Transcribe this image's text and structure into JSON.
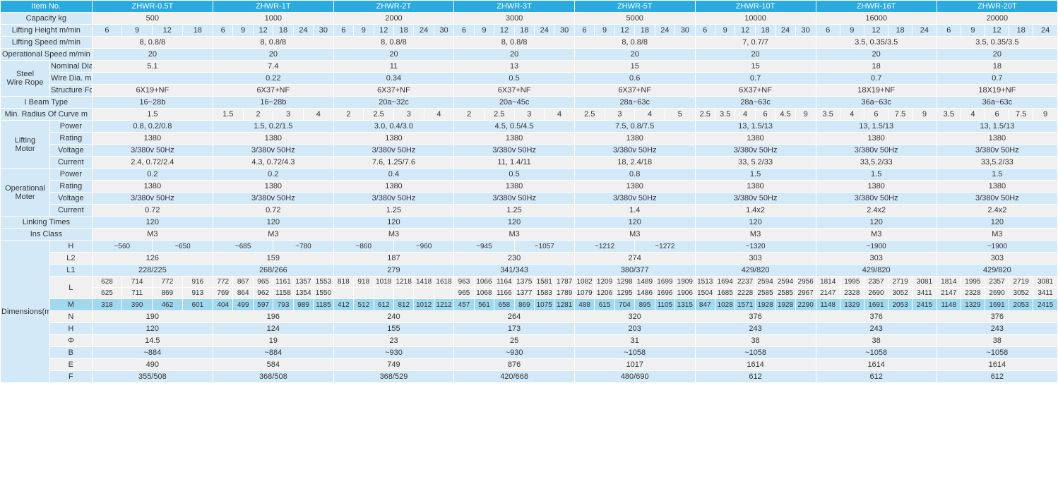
{
  "table": {
    "type": "table",
    "background_color": "#ffffff",
    "header_bg": "#29abe2",
    "header_text_color": "#ffffff",
    "alt_bg_light": "#d4e9f7",
    "alt_bg_mid": "#a0d8f0",
    "alt_bg_white": "#f0f0f0",
    "font_size_pt": 11,
    "font_family": "Arial",
    "col_widths": {
      "label_col1": 70,
      "label_col2": 60,
      "data_col": 171
    },
    "headers": {
      "item_no": "Item No.",
      "models": [
        "ZHWR-0.5T",
        "ZHWR-1T",
        "ZHWR-2T",
        "ZHWR-3T",
        "ZHWR-5T",
        "ZHWR-10T",
        "ZHWR-16T",
        "ZHWR-20T"
      ]
    },
    "rows": [
      {
        "label": "Capacity kg",
        "values": [
          "500",
          "1000",
          "2000",
          "3000",
          "5000",
          "10000",
          "16000",
          "20000"
        ],
        "style": "white"
      },
      {
        "label": "Lifting Height m/min",
        "subcols": true,
        "data": [
          [
            "6",
            "9",
            "12",
            "18"
          ],
          [
            "6",
            "9",
            "12",
            "18",
            "24",
            "30"
          ],
          [
            "6",
            "9",
            "12",
            "18",
            "24",
            "30"
          ],
          [
            "6",
            "9",
            "12",
            "18",
            "24",
            "30"
          ],
          [
            "6",
            "9",
            "12",
            "18",
            "24",
            "30"
          ],
          [
            "6",
            "9",
            "12",
            "18",
            "24",
            "30"
          ],
          [
            "6",
            "9",
            "12",
            "18",
            "24"
          ],
          [
            "6",
            "9",
            "12",
            "18",
            "24"
          ]
        ],
        "style": "light"
      },
      {
        "label": "Lifting Speed m/min",
        "values": [
          "8,  0.8/8",
          "8,  0.8/8",
          "8,  0.8/8",
          "8,  0.8/8",
          "8,  0.8/8",
          "7,  0.7/7",
          "3.5,  0.35/3.5",
          "3.5,  0.35/3.5"
        ],
        "style": "white"
      },
      {
        "label": "Operational Speed m/min",
        "values": [
          "20",
          "20",
          "20",
          "20",
          "20",
          "20",
          "20",
          "20"
        ],
        "style": "light"
      },
      {
        "group": "Steel Wire Rope",
        "sublabel": "Nominal Dia. mm",
        "values": [
          "5.1",
          "7.4",
          "11",
          "13",
          "15",
          "15",
          "18",
          "18"
        ],
        "style": "white"
      },
      {
        "group": "Steel Wire Rope",
        "sublabel": "Wire Dia. m",
        "values": [
          "",
          "0.22",
          "0.34",
          "0.5",
          "0.6",
          "0.7",
          "0.7",
          "0.7"
        ],
        "style": "light"
      },
      {
        "group": "Steel Wire Rope",
        "sublabel": "Structure Form",
        "values": [
          "6X19+NF",
          "6X37+NF",
          "6X37+NF",
          "6X37+NF",
          "6X37+NF",
          "6X37+NF",
          "18X19+NF",
          "18X19+NF"
        ],
        "style": "white"
      },
      {
        "label": "I Beam Type",
        "values": [
          "16~28b",
          "16~28b",
          "20a~32c",
          "20a~45c",
          "28a~63c",
          "28a~63c",
          "36a~63c",
          "36a~63c"
        ],
        "style": "light"
      },
      {
        "label": "Min. Radius Of Curve m",
        "subcols": true,
        "data": [
          [
            "1.5"
          ],
          [
            "1.5",
            "2",
            "3",
            "4"
          ],
          [
            "2",
            "2.5",
            "3",
            "4"
          ],
          [
            "2",
            "2.5",
            "3",
            "4"
          ],
          [
            "2.5",
            "3",
            "4",
            "5"
          ],
          [
            "2.5",
            "3.5",
            "4",
            "6",
            "4.5",
            "9"
          ],
          [
            "3.5",
            "4",
            "6",
            "7.5",
            "9"
          ],
          [
            "3.5",
            "4",
            "6",
            "7.5",
            "9"
          ]
        ],
        "style": "white"
      },
      {
        "group": "Lifting Motor",
        "sublabel": "Power",
        "values": [
          "0.8, 0.2/0.8",
          "1.5, 0.2/1.5",
          "3.0, 0.4/3.0",
          "4.5, 0.5/4.5",
          "7.5, 0.8/7.5",
          "13, 1.5/13",
          "13, 1.5/13",
          "13, 1.5/13"
        ],
        "style": "light"
      },
      {
        "group": "Lifting Motor",
        "sublabel": "Rating",
        "values": [
          "1380",
          "1380",
          "1380",
          "1380",
          "1380",
          "1380",
          "1380",
          "1380"
        ],
        "style": "white"
      },
      {
        "group": "Lifting Motor",
        "sublabel": "Voltage",
        "values": [
          "3/380v 50Hz",
          "3/380v 50Hz",
          "3/380v 50Hz",
          "3/380v 50Hz",
          "3/380v 50Hz",
          "3/380v 50Hz",
          "3/380v 50Hz",
          "3/380v 50Hz"
        ],
        "style": "light"
      },
      {
        "group": "Lifting Motor",
        "sublabel": "Current",
        "values": [
          "2.4, 0.72/2.4",
          "4.3, 0.72/4.3",
          "7.6, 1.25/7.6",
          "11, 1.4/11",
          "18, 2.4/18",
          "33, 5.2/33",
          "33,5.2/33",
          "33,5.2/33"
        ],
        "style": "white"
      },
      {
        "group": "Operational Moter",
        "sublabel": "Power",
        "values": [
          "0.2",
          "0.2",
          "0.4",
          "0.5",
          "0.8",
          "1.5",
          "1.5",
          "1.5"
        ],
        "style": "light"
      },
      {
        "group": "Operational Moter",
        "sublabel": "Rating",
        "values": [
          "1380",
          "1380",
          "1380",
          "1380",
          "1380",
          "1380",
          "1380",
          "1380"
        ],
        "style": "white"
      },
      {
        "group": "Operational Moter",
        "sublabel": "Voltage",
        "values": [
          "3/380v 50Hz",
          "3/380v 50Hz",
          "3/380v 50Hz",
          "3/380v 50Hz",
          "3/380v 50Hz",
          "3/380v 50Hz",
          "3/380v 50Hz",
          "3/380v 50Hz"
        ],
        "style": "light"
      },
      {
        "group": "Operational Moter",
        "sublabel": "Current",
        "values": [
          "0.72",
          "0.72",
          "1.25",
          "1.25",
          "1.4",
          "1.4x2",
          "2.4x2",
          "2.4x2"
        ],
        "style": "white"
      },
      {
        "label": "Linking Times",
        "values": [
          "120",
          "120",
          "120",
          "120",
          "120",
          "120",
          "120",
          "120"
        ],
        "style": "light"
      },
      {
        "label": "Ins Class",
        "values": [
          "M3",
          "M3",
          "M3",
          "M3",
          "M3",
          "M3",
          "M3",
          "M3"
        ],
        "style": "white"
      }
    ],
    "dimensions": {
      "group_label": "Dimensions(mm)",
      "rows": [
        {
          "k": "H",
          "sub": true,
          "data": [
            [
              "~560",
              "~650"
            ],
            [
              "~685",
              "~780"
            ],
            [
              "~860",
              "~960"
            ],
            [
              "~945",
              "~1057"
            ],
            [
              "~1212",
              "~1272"
            ],
            [
              "~1320"
            ],
            [
              "~1900"
            ],
            [
              "~1900"
            ]
          ],
          "style": "light"
        },
        {
          "k": "L2",
          "values": [
            "126",
            "159",
            "187",
            "230",
            "274",
            "303",
            "303",
            "303"
          ],
          "style": "white"
        },
        {
          "k": "L1",
          "values": [
            "228/225",
            "268/266",
            "279",
            "341/343",
            "380/377",
            "429/820",
            "429/820",
            "429/820"
          ],
          "style": "light"
        },
        {
          "k": "L",
          "double": true,
          "top": [
            [
              "628",
              "714",
              "772",
              "916"
            ],
            [
              "772",
              "867",
              "965",
              "1161",
              "1357",
              "1553"
            ],
            [
              "818",
              "918",
              "1018",
              "1218",
              "1418",
              "1618"
            ],
            [
              "963",
              "1066",
              "1164",
              "1375",
              "1581",
              "1787"
            ],
            [
              "1082",
              "1209",
              "1298",
              "1489",
              "1699",
              "1909"
            ],
            [
              "1513",
              "1694",
              "2237",
              "2594",
              "2594",
              "2956"
            ],
            [
              "1814",
              "1995",
              "2357",
              "2719",
              "3081"
            ],
            [
              "1814",
              "1995",
              "2357",
              "2719",
              "3081"
            ]
          ],
          "bot": [
            [
              "625",
              "711",
              "869",
              "913"
            ],
            [
              "769",
              "864",
              "962",
              "1158",
              "1354",
              "1550"
            ],
            [
              "",
              "",
              "",
              "",
              "",
              ""
            ],
            [
              "965",
              "1068",
              "1166",
              "1377",
              "1583",
              "1789"
            ],
            [
              "1079",
              "1206",
              "1295",
              "1486",
              "1696",
              "1906"
            ],
            [
              "1504",
              "1685",
              "2228",
              "2585",
              "2585",
              "2967"
            ],
            [
              "2147",
              "2328",
              "2690",
              "3052",
              "3411"
            ],
            [
              "2147",
              "2328",
              "2690",
              "3052",
              "3411"
            ]
          ],
          "style": "white"
        },
        {
          "k": "M",
          "sub": true,
          "data": [
            [
              "318",
              "390",
              "462",
              "601"
            ],
            [
              "404",
              "499",
              "597",
              "793",
              "989",
              "1185"
            ],
            [
              "412",
              "512",
              "612",
              "812",
              "1012",
              "1212"
            ],
            [
              "457",
              "561",
              "658",
              "869",
              "1075",
              "1281"
            ],
            [
              "488",
              "615",
              "704",
              "895",
              "1105",
              "1315"
            ],
            [
              "847",
              "1028",
              "1571",
              "1928",
              "1928",
              "2290"
            ],
            [
              "1148",
              "1329",
              "1691",
              "2053",
              "2415"
            ],
            [
              "1148",
              "1329",
              "1691",
              "2053",
              "2415"
            ]
          ],
          "style": "mid"
        },
        {
          "k": "N",
          "values": [
            "190",
            "196",
            "240",
            "264",
            "320",
            "376",
            "376",
            "376"
          ],
          "style": "white"
        },
        {
          "k": "H",
          "values": [
            "120",
            "124",
            "155",
            "173",
            "203",
            "243",
            "243",
            "243"
          ],
          "style": "light"
        },
        {
          "k": "Φ",
          "values": [
            "14.5",
            "19",
            "23",
            "25",
            "31",
            "38",
            "38",
            "38"
          ],
          "style": "white"
        },
        {
          "k": "B",
          "values": [
            "~884",
            "~884",
            "~930",
            "~930",
            "~1058",
            "~1058",
            "~1058",
            "~1058"
          ],
          "style": "light"
        },
        {
          "k": "E",
          "values": [
            "490",
            "584",
            "749",
            "876",
            "1017",
            "1614",
            "1614",
            "1614"
          ],
          "style": "white"
        },
        {
          "k": "F",
          "values": [
            "355/508",
            "368/508",
            "368/529",
            "420/668",
            "480/690",
            "612",
            "612",
            "612"
          ],
          "style": "light"
        }
      ]
    }
  }
}
